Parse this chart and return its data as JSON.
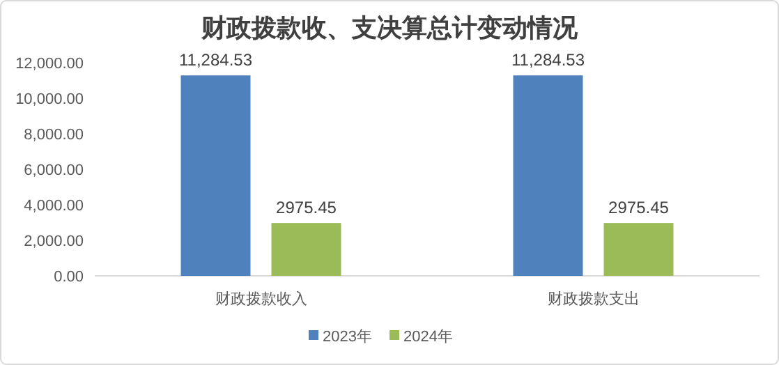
{
  "chart_data": {
    "type": "bar",
    "title": "财政拨款收、支决算总计变动情况",
    "categories": [
      "财政拨款收入",
      "财政拨款支出"
    ],
    "series": [
      {
        "name": "2023年",
        "color": "#4f81bd",
        "values": [
          11284.53,
          11284.53
        ],
        "value_labels": [
          "11,284.53",
          "11,284.53"
        ]
      },
      {
        "name": "2024年",
        "color": "#9bbb59",
        "values": [
          2975.45,
          2975.45
        ],
        "value_labels": [
          "2975.45",
          "2975.45"
        ]
      }
    ],
    "ylim": [
      0,
      12000
    ],
    "yticks": [
      {
        "value": 0,
        "label": "0.00"
      },
      {
        "value": 2000,
        "label": "2,000.00"
      },
      {
        "value": 4000,
        "label": "4,000.00"
      },
      {
        "value": 6000,
        "label": "6,000.00"
      },
      {
        "value": 8000,
        "label": "8,000.00"
      },
      {
        "value": 10000,
        "label": "10,000.00"
      },
      {
        "value": 12000,
        "label": "12,000.00"
      }
    ],
    "grid": false,
    "legend": "bottom"
  }
}
